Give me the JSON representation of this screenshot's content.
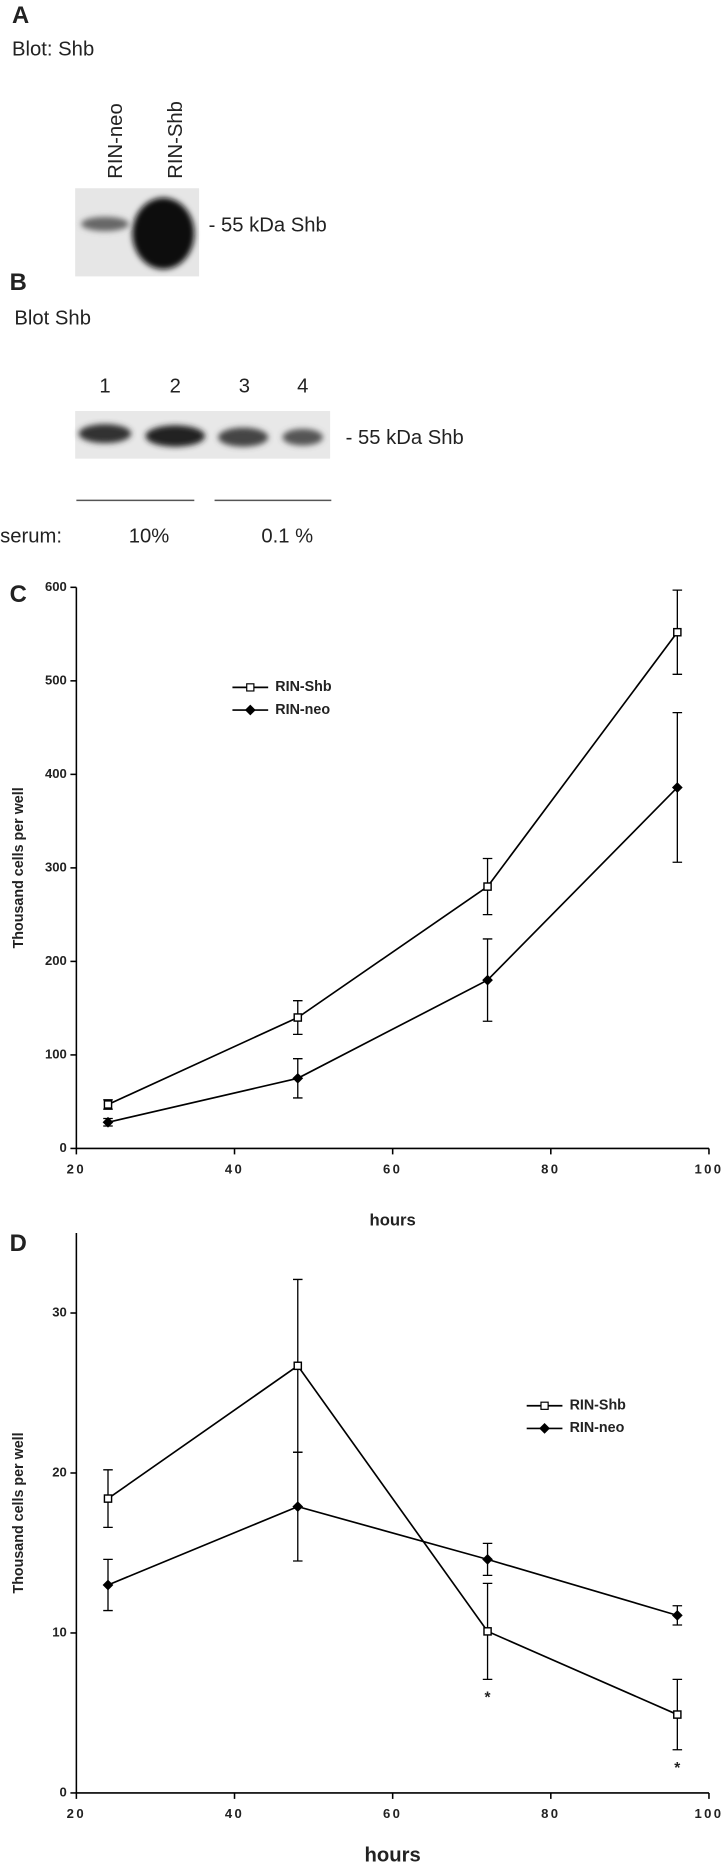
{
  "panels": {
    "a": {
      "letter": "A",
      "blot": "Blot: Shb",
      "lanes": [
        "RIN-neo",
        "RIN-Shb"
      ],
      "band": "- 55 kDa Shb"
    },
    "b": {
      "letter": "B",
      "blot": "Blot Shb",
      "lanes": [
        "1",
        "2",
        "3",
        "4"
      ],
      "band": "- 55 kDa Shb",
      "serum": "serum:",
      "groups": [
        "10%",
        "0.1 %"
      ]
    }
  },
  "chart_data": [
    {
      "type": "line",
      "panel": "C",
      "xlabel": "hours",
      "ylabel": "Thousand cells per well",
      "x": [
        24,
        48,
        72,
        96
      ],
      "xlim": [
        20,
        100
      ],
      "xticks": [
        20,
        40,
        60,
        80,
        100
      ],
      "ylim": [
        0,
        600
      ],
      "yticks": [
        0,
        100,
        200,
        300,
        400,
        500,
        600
      ],
      "legend": "upper left",
      "series": [
        {
          "name": "RIN-Shb",
          "color": "#000000",
          "marker": "square",
          "values": [
            47,
            140,
            280,
            552
          ],
          "errors": [
            5,
            18,
            30,
            45
          ]
        },
        {
          "name": "RIN-neo",
          "color": "#000000",
          "marker": "diamond",
          "values": [
            28,
            75,
            180,
            386
          ],
          "errors": [
            4,
            21,
            44,
            80
          ]
        }
      ]
    },
    {
      "type": "line",
      "panel": "D",
      "xlabel": "hours",
      "ylabel": "Thousand cells per well",
      "x": [
        24,
        48,
        72,
        96
      ],
      "xlim": [
        20,
        100
      ],
      "xticks": [
        20,
        40,
        60,
        80,
        100
      ],
      "ylim": [
        0,
        35
      ],
      "yticks": [
        0,
        10,
        20,
        30
      ],
      "legend": "right",
      "annotations": [
        "*",
        "*"
      ],
      "series": [
        {
          "name": "RIN-Shb",
          "color": "#000000",
          "marker": "square",
          "values": [
            18.4,
            26.7,
            10.1,
            4.9
          ],
          "errors": [
            1.8,
            5.4,
            3,
            2.2
          ]
        },
        {
          "name": "RIN-neo",
          "color": "#000000",
          "marker": "diamond",
          "values": [
            13,
            17.9,
            14.6,
            11.1
          ],
          "errors": [
            1.6,
            3.4,
            1,
            0.6
          ]
        }
      ]
    }
  ]
}
